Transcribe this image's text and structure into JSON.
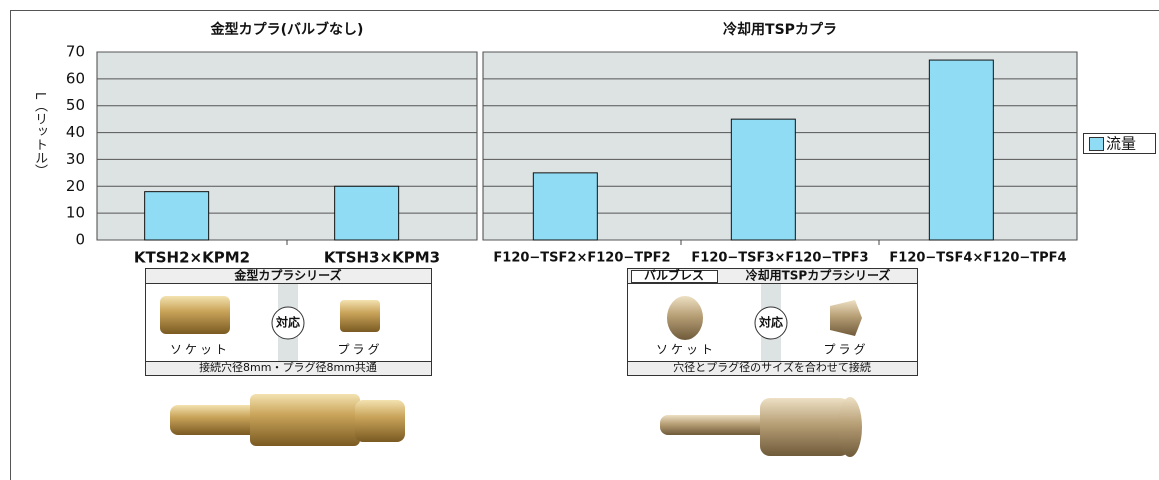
{
  "chart_data": [
    {
      "type": "bar",
      "title": "金型カプラ(バルブなし)",
      "ylabel": "L（リットル）",
      "categories": [
        "KTSH2×KPM2",
        "KTSH3×KPM3"
      ],
      "values": [
        18,
        20
      ],
      "color": "#8fdcf4",
      "ylim": [
        0,
        70
      ],
      "yticks": [
        0,
        10,
        20,
        30,
        40,
        50,
        60,
        70
      ],
      "grid": true
    },
    {
      "type": "bar",
      "title": "冷却用TSPカプラ",
      "categories": [
        "F120−TSF2×F120−TPF2",
        "F120−TSF3×F120−TPF3",
        "F120−TSF4×F120−TPF4"
      ],
      "series": [
        {
          "name": "流量",
          "color": "#8fdcf4",
          "values": [
            25,
            45,
            67
          ]
        }
      ],
      "ylim": [
        0,
        70
      ],
      "yticks": [
        0,
        10,
        20,
        30,
        40,
        50,
        60,
        70
      ],
      "grid": true,
      "legend": "right"
    }
  ],
  "panels": [
    {
      "title": "金型カプラシリーズ",
      "socket": "ソケット",
      "match": "対応",
      "plug": "プラグ",
      "note": "接続穴径8mm・プラグ径8mm共通"
    },
    {
      "badge": "バルブレス",
      "title": "冷却用TSPカプラシリーズ",
      "socket": "ソケット",
      "match": "対応",
      "plug": "プラグ",
      "note": "穴径とプラグ径のサイズを合わせて接続"
    }
  ]
}
